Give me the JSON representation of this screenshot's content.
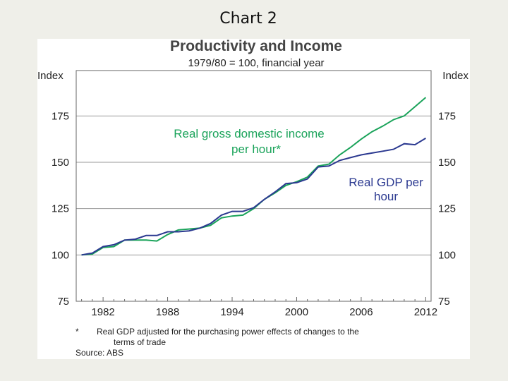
{
  "slide_title": "Chart 2",
  "footnote": {
    "marker": "*",
    "line1": "Real GDP adjusted for the purchasing power effects of changes to the",
    "line2": "terms of trade",
    "source": "Source: ABS"
  },
  "chart_data": {
    "type": "line",
    "title": "Productivity and Income",
    "subtitle": "1979/80 = 100, financial year",
    "ylabel_left": "Index",
    "ylabel_right": "Index",
    "xlim": [
      1979.5,
      2012.5
    ],
    "ylim": [
      75,
      200
    ],
    "xticks": [
      "1982",
      "1988",
      "1994",
      "2000",
      "2006",
      "2012"
    ],
    "xtick_values": [
      1982,
      1988,
      1994,
      2000,
      2006,
      2012
    ],
    "yticks": [
      "75",
      "100",
      "125",
      "150",
      "175"
    ],
    "ytick_values": [
      75,
      100,
      125,
      150,
      175
    ],
    "grid": "horizontal",
    "x": [
      1980,
      1981,
      1982,
      1983,
      1984,
      1985,
      1986,
      1987,
      1988,
      1989,
      1990,
      1991,
      1992,
      1993,
      1994,
      1995,
      1996,
      1997,
      1998,
      1999,
      2000,
      2001,
      2002,
      2003,
      2004,
      2005,
      2006,
      2007,
      2008,
      2009,
      2010,
      2011,
      2012
    ],
    "series": [
      {
        "name": "Real gross domestic income per hour*",
        "label_lines": [
          "Real gross domestic income",
          "per hour*"
        ],
        "color": "#1aa35a",
        "values": [
          100,
          100.5,
          104,
          104.5,
          108,
          108,
          108,
          107.5,
          111,
          113.5,
          114,
          114.5,
          116,
          120,
          121,
          121.5,
          125,
          130,
          133.5,
          137.5,
          139.5,
          142,
          148,
          149,
          154,
          158,
          162.5,
          166.5,
          169.5,
          173,
          175,
          180,
          185
        ]
      },
      {
        "name": "Real GDP per hour",
        "label_lines": [
          "Real GDP per",
          "hour"
        ],
        "color": "#2b3990",
        "values": [
          100,
          101,
          104.5,
          105.5,
          108,
          108.5,
          110.5,
          110.5,
          112.5,
          112.5,
          113,
          114.5,
          117,
          121.5,
          123.5,
          123.5,
          125.5,
          130,
          134,
          138.5,
          139,
          141,
          147.5,
          148,
          151,
          152.5,
          154,
          155,
          156,
          157,
          160,
          159.5,
          163
        ]
      }
    ]
  }
}
